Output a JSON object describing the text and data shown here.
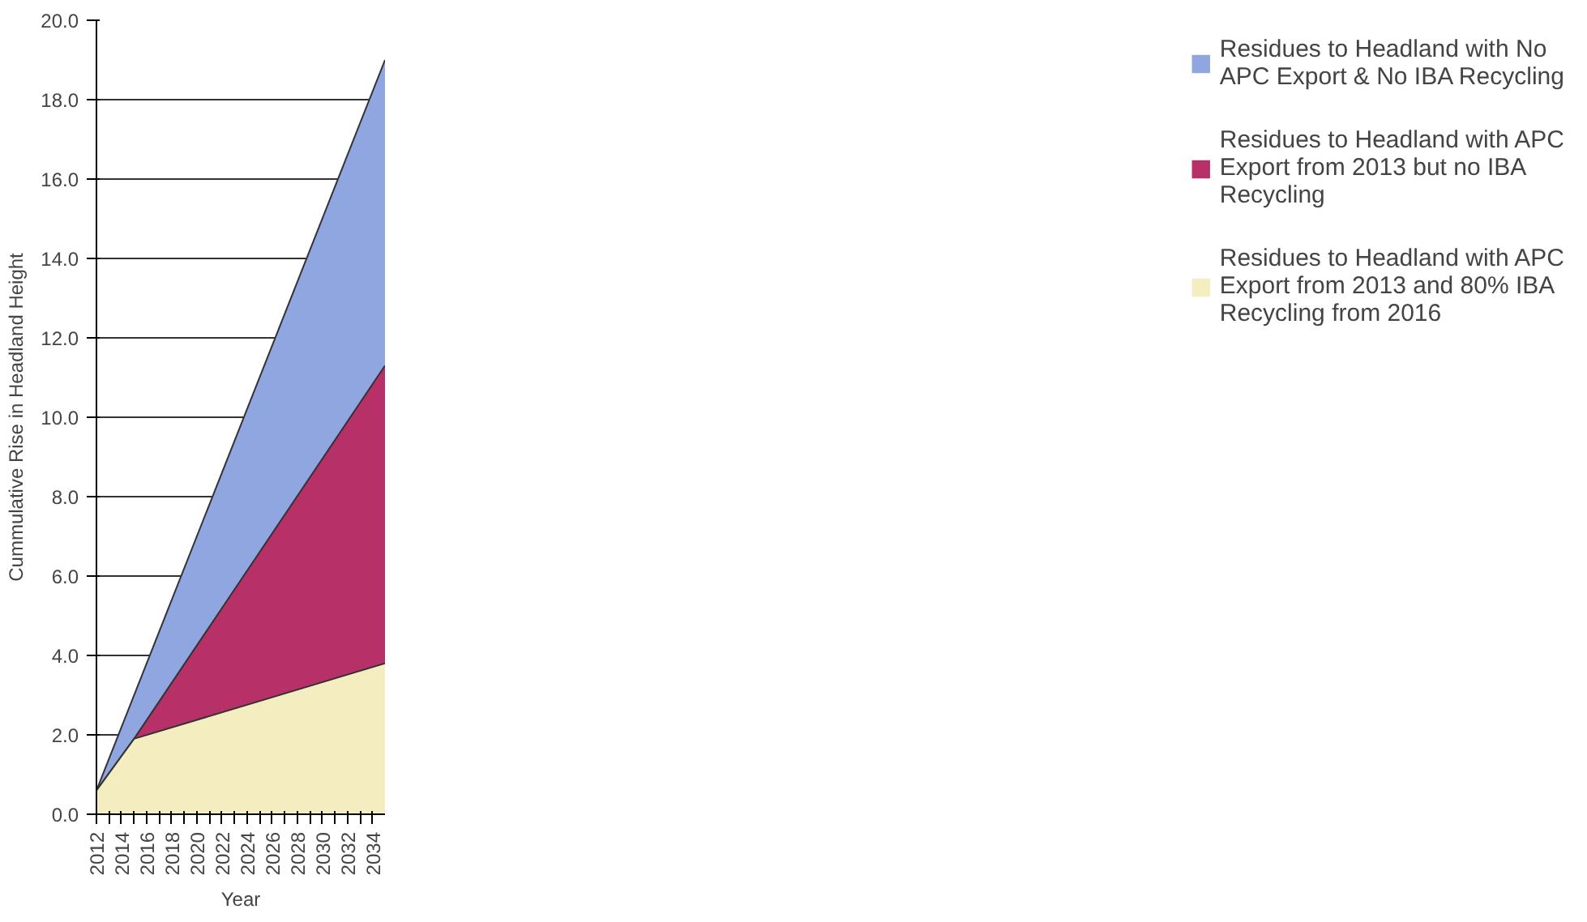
{
  "chart_data": {
    "type": "area",
    "xlabel": "Year",
    "ylabel": "Cummulative Rise in Headland Height",
    "xlim": [
      2012,
      2035
    ],
    "ylim": [
      0,
      20
    ],
    "xticks": [
      2012,
      {
        "value": 2013,
        "label": null
      },
      2014,
      {
        "value": 2015,
        "label": null
      },
      2016,
      {
        "value": 2017,
        "label": null
      },
      2018,
      {
        "value": 2019,
        "label": null
      },
      2020,
      {
        "value": 2021,
        "label": null
      },
      2022,
      {
        "value": 2023,
        "label": null
      },
      2024,
      {
        "value": 2025,
        "label": null
      },
      2026,
      {
        "value": 2027,
        "label": null
      },
      2028,
      {
        "value": 2029,
        "label": null
      },
      2030,
      {
        "value": 2031,
        "label": null
      },
      2032,
      {
        "value": 2033,
        "label": null
      },
      2034
    ],
    "yticks": [
      {
        "value": 0,
        "label": "0.0"
      },
      {
        "value": 2,
        "label": "2.0"
      },
      {
        "value": 4,
        "label": "4.0"
      },
      {
        "value": 6,
        "label": "6.0"
      },
      {
        "value": 8,
        "label": "8.0"
      },
      {
        "value": 10,
        "label": "10.0"
      },
      {
        "value": 12,
        "label": "12.0"
      },
      {
        "value": 14,
        "label": "14.0"
      },
      {
        "value": 16,
        "label": "16.0"
      },
      {
        "value": 18,
        "label": "18.0"
      },
      {
        "value": 20,
        "label": "20.0"
      }
    ],
    "grid": "y",
    "legend": "right",
    "series": [
      {
        "name": "Residues to Headland with No APC Export & No IBA Recycling",
        "color": "#8fa6e0",
        "x": [
          2012,
          2035
        ],
        "values": [
          0.6,
          19.0
        ]
      },
      {
        "name": "Residues to Headland with APC Export from 2013 but no IBA Recycling",
        "color": "#b83068",
        "x": [
          2012,
          2015,
          2035
        ],
        "values": [
          0.6,
          1.9,
          11.3
        ]
      },
      {
        "name": "Residues to Headland with APC Export from 2013 and 80% IBA Recycling from 2016",
        "color": "#f3edc0",
        "x": [
          2012,
          2015,
          2035
        ],
        "values": [
          0.6,
          1.9,
          3.8
        ]
      }
    ]
  }
}
